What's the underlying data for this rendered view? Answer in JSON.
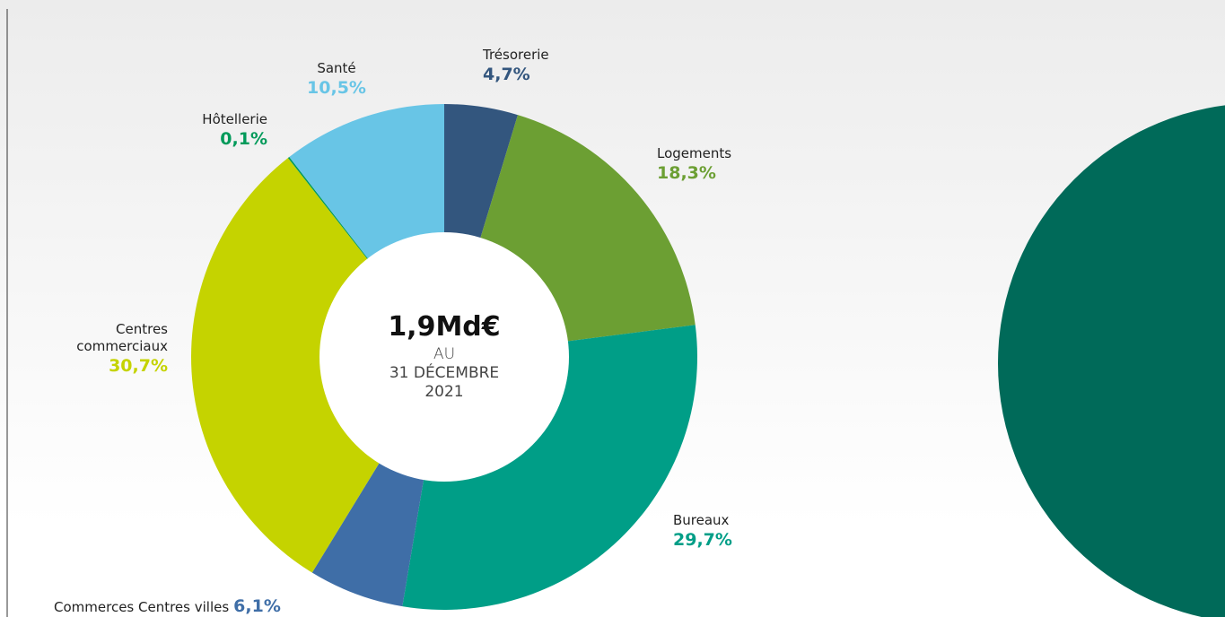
{
  "chart_data": {
    "type": "donut",
    "center_text": [
      "1,9Md€",
      "AU",
      "31 DÉCEMBRE",
      "2021"
    ],
    "categories": [
      "Trésorerie",
      "Logements",
      "Bureaux",
      "Commerces Centres villes",
      "Centres commerciaux",
      "Hôtellerie",
      "Santé"
    ],
    "values": [
      4.7,
      18.3,
      29.7,
      6.1,
      30.7,
      0.1,
      10.5
    ],
    "value_labels": [
      "4,7%",
      "18,3%",
      "29,7%",
      "6,1%",
      "30,7%",
      "0,1%",
      "10,5%"
    ],
    "colors": [
      "#33567e",
      "#6c9f33",
      "#009e87",
      "#3f6ea7",
      "#c5d300",
      "#009a5a",
      "#68c5e6"
    ]
  }
}
